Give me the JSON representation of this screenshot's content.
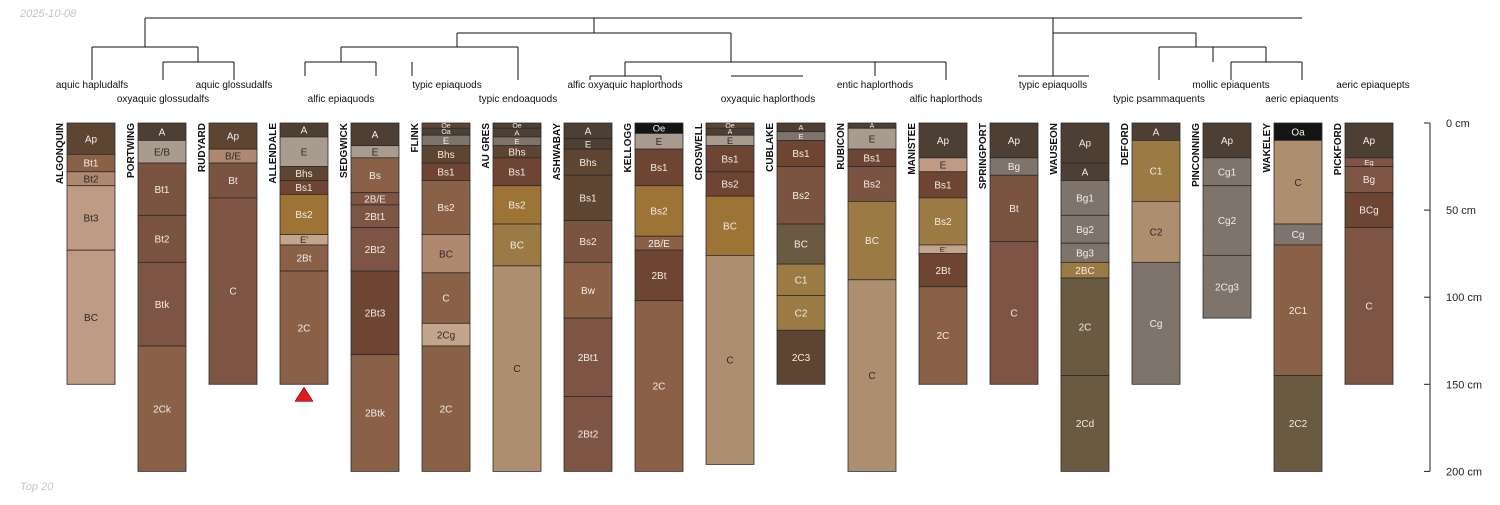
{
  "date": "2025-10-08",
  "footer": "Top 20",
  "depth_axis": {
    "unit": "cm",
    "ticks": [
      {
        "depth": 0,
        "label": "0 cm"
      },
      {
        "depth": 50,
        "label": "50 cm"
      },
      {
        "depth": 100,
        "label": "100 cm"
      },
      {
        "depth": 150,
        "label": "150 cm"
      },
      {
        "depth": 200,
        "label": "200 cm"
      }
    ]
  },
  "taxa": [
    "aquic hapludalfs",
    "oxyaquic glossudalfs",
    "aquic glossudalfs",
    "alfic epiaquods",
    "typic epiaquods",
    "typic endoaquods",
    "alfic oxyaquic haplorthods",
    "oxyaquic haplorthods",
    "entic haplorthods",
    "alfic haplorthods",
    "typic epiaquolls",
    "typic psammaquents",
    "mollic epiaquents",
    "aeric epiaquents",
    "aeric epiaquepts"
  ],
  "colors": {
    "black": "#141414",
    "dark": "#4d3f33",
    "darkbrown": "#5e4532",
    "reddark": "#6e4533",
    "brown": "#7a5440",
    "redbrown": "#7e5545",
    "medbrown": "#8a6147",
    "lightbrown": "#b08870",
    "pinkish": "#bf9a84",
    "olivebrown": "#9b7a44",
    "orange": "#9e7436",
    "tan": "#ad8e6e",
    "lighttan": "#c4a58b",
    "grey": "#a99b8d",
    "greybrown": "#7e746b",
    "olivedk": "#6b5a42",
    "pink": "#d8b3a0"
  },
  "profiles": [
    {
      "name": "ALGONQUIN",
      "horizons": [
        {
          "top": 0,
          "bottom": 18,
          "name": "Ap",
          "color": "darkbrown"
        },
        {
          "top": 18,
          "bottom": 28,
          "name": "Bt1",
          "color": "medbrown"
        },
        {
          "top": 28,
          "bottom": 36,
          "name": "Bt2",
          "color": "lightbrown"
        },
        {
          "top": 36,
          "bottom": 73,
          "name": "Bt3",
          "color": "pinkish"
        },
        {
          "top": 73,
          "bottom": 150,
          "name": "BC",
          "color": "pinkish"
        }
      ]
    },
    {
      "name": "PORTWING",
      "horizons": [
        {
          "top": 0,
          "bottom": 10,
          "name": "A",
          "color": "dark"
        },
        {
          "top": 10,
          "bottom": 23,
          "name": "E/B",
          "color": "grey"
        },
        {
          "top": 23,
          "bottom": 53,
          "name": "Bt1",
          "color": "brown"
        },
        {
          "top": 53,
          "bottom": 80,
          "name": "Bt2",
          "color": "brown"
        },
        {
          "top": 80,
          "bottom": 128,
          "name": "Btk",
          "color": "redbrown"
        },
        {
          "top": 128,
          "bottom": 200,
          "name": "2Ck",
          "color": "medbrown"
        }
      ]
    },
    {
      "name": "RUDYARD",
      "horizons": [
        {
          "top": 0,
          "bottom": 15,
          "name": "Ap",
          "color": "darkbrown"
        },
        {
          "top": 15,
          "bottom": 23,
          "name": "B/E",
          "color": "lightbrown"
        },
        {
          "top": 23,
          "bottom": 43,
          "name": "Bt",
          "color": "brown"
        },
        {
          "top": 43,
          "bottom": 150,
          "name": "C",
          "color": "redbrown"
        }
      ]
    },
    {
      "name": "ALLENDALE",
      "horizons": [
        {
          "top": 0,
          "bottom": 8,
          "name": "A",
          "color": "dark"
        },
        {
          "top": 8,
          "bottom": 25,
          "name": "E",
          "color": "grey"
        },
        {
          "top": 25,
          "bottom": 33,
          "name": "Bhs",
          "color": "darkbrown"
        },
        {
          "top": 33,
          "bottom": 41,
          "name": "Bs1",
          "color": "reddark"
        },
        {
          "top": 41,
          "bottom": 64,
          "name": "Bs2",
          "color": "orange"
        },
        {
          "top": 64,
          "bottom": 70,
          "name": "E'",
          "color": "lighttan"
        },
        {
          "top": 70,
          "bottom": 85,
          "name": "2Bt",
          "color": "medbrown"
        },
        {
          "top": 85,
          "bottom": 150,
          "name": "2C",
          "color": "medbrown"
        }
      ],
      "marker": true
    },
    {
      "name": "SEDGWICK",
      "horizons": [
        {
          "top": 0,
          "bottom": 13,
          "name": "A",
          "color": "dark"
        },
        {
          "top": 13,
          "bottom": 20,
          "name": "E",
          "color": "grey"
        },
        {
          "top": 20,
          "bottom": 40,
          "name": "Bs",
          "color": "medbrown"
        },
        {
          "top": 40,
          "bottom": 47,
          "name": "2B/E",
          "color": "redbrown"
        },
        {
          "top": 47,
          "bottom": 60,
          "name": "2Bt1",
          "color": "redbrown"
        },
        {
          "top": 60,
          "bottom": 85,
          "name": "2Bt2",
          "color": "redbrown"
        },
        {
          "top": 85,
          "bottom": 133,
          "name": "2Bt3",
          "color": "reddark"
        },
        {
          "top": 133,
          "bottom": 200,
          "name": "2Btk",
          "color": "medbrown"
        }
      ]
    },
    {
      "name": "FLINK",
      "horizons": [
        {
          "top": 0,
          "bottom": 3,
          "name": "Oe",
          "color": "darkbrown"
        },
        {
          "top": 3,
          "bottom": 7,
          "name": "Oa",
          "color": "dark"
        },
        {
          "top": 7,
          "bottom": 13,
          "name": "E",
          "color": "greybrown"
        },
        {
          "top": 13,
          "bottom": 23,
          "name": "Bhs",
          "color": "darkbrown"
        },
        {
          "top": 23,
          "bottom": 33,
          "name": "Bs1",
          "color": "reddark"
        },
        {
          "top": 33,
          "bottom": 64,
          "name": "Bs2",
          "color": "medbrown"
        },
        {
          "top": 64,
          "bottom": 86,
          "name": "BC",
          "color": "lightbrown"
        },
        {
          "top": 86,
          "bottom": 115,
          "name": "C",
          "color": "medbrown"
        },
        {
          "top": 115,
          "bottom": 128,
          "name": "2Cg",
          "color": "lighttan"
        },
        {
          "top": 128,
          "bottom": 200,
          "name": "2C",
          "color": "medbrown"
        }
      ]
    },
    {
      "name": "AU GRES",
      "horizons": [
        {
          "top": 0,
          "bottom": 3,
          "name": "Oe",
          "color": "dark"
        },
        {
          "top": 3,
          "bottom": 8,
          "name": "A",
          "color": "dark"
        },
        {
          "top": 8,
          "bottom": 13,
          "name": "E",
          "color": "greybrown"
        },
        {
          "top": 13,
          "bottom": 20,
          "name": "Bhs",
          "color": "darkbrown"
        },
        {
          "top": 20,
          "bottom": 36,
          "name": "Bs1",
          "color": "reddark"
        },
        {
          "top": 36,
          "bottom": 58,
          "name": "Bs2",
          "color": "orange"
        },
        {
          "top": 58,
          "bottom": 82,
          "name": "BC",
          "color": "olivebrown"
        },
        {
          "top": 82,
          "bottom": 200,
          "name": "C",
          "color": "tan"
        }
      ]
    },
    {
      "name": "ASHWABAY",
      "horizons": [
        {
          "top": 0,
          "bottom": 9,
          "name": "A",
          "color": "dark"
        },
        {
          "top": 9,
          "bottom": 15,
          "name": "E",
          "color": "dark"
        },
        {
          "top": 15,
          "bottom": 30,
          "name": "Bhs",
          "color": "darkbrown"
        },
        {
          "top": 30,
          "bottom": 56,
          "name": "Bs1",
          "color": "darkbrown"
        },
        {
          "top": 56,
          "bottom": 80,
          "name": "Bs2",
          "color": "brown"
        },
        {
          "top": 80,
          "bottom": 112,
          "name": "Bw",
          "color": "medbrown"
        },
        {
          "top": 112,
          "bottom": 157,
          "name": "2Bt1",
          "color": "redbrown"
        },
        {
          "top": 157,
          "bottom": 200,
          "name": "2Bt2",
          "color": "redbrown"
        }
      ]
    },
    {
      "name": "KELLOGG",
      "horizons": [
        {
          "top": 0,
          "bottom": 6,
          "name": "Oe",
          "color": "black"
        },
        {
          "top": 6,
          "bottom": 15,
          "name": "E",
          "color": "grey"
        },
        {
          "top": 15,
          "bottom": 36,
          "name": "Bs1",
          "color": "reddark"
        },
        {
          "top": 36,
          "bottom": 65,
          "name": "Bs2",
          "color": "orange"
        },
        {
          "top": 65,
          "bottom": 73,
          "name": "2B/E",
          "color": "medbrown"
        },
        {
          "top": 73,
          "bottom": 102,
          "name": "2Bt",
          "color": "reddark"
        },
        {
          "top": 102,
          "bottom": 200,
          "name": "2C",
          "color": "medbrown"
        }
      ]
    },
    {
      "name": "CROSWELL",
      "horizons": [
        {
          "top": 0,
          "bottom": 3,
          "name": "Oe",
          "color": "darkbrown"
        },
        {
          "top": 3,
          "bottom": 7,
          "name": "A",
          "color": "dark"
        },
        {
          "top": 7,
          "bottom": 13,
          "name": "E",
          "color": "grey"
        },
        {
          "top": 13,
          "bottom": 28,
          "name": "Bs1",
          "color": "reddark"
        },
        {
          "top": 28,
          "bottom": 42,
          "name": "Bs2",
          "color": "reddark"
        },
        {
          "top": 42,
          "bottom": 76,
          "name": "BC",
          "color": "orange"
        },
        {
          "top": 76,
          "bottom": 196,
          "name": "C",
          "color": "tan"
        }
      ]
    },
    {
      "name": "CUBLAKE",
      "horizons": [
        {
          "top": 0,
          "bottom": 5,
          "name": "A",
          "color": "dark"
        },
        {
          "top": 5,
          "bottom": 10,
          "name": "E",
          "color": "greybrown"
        },
        {
          "top": 10,
          "bottom": 25,
          "name": "Bs1",
          "color": "reddark"
        },
        {
          "top": 25,
          "bottom": 58,
          "name": "Bs2",
          "color": "brown"
        },
        {
          "top": 58,
          "bottom": 81,
          "name": "BC",
          "color": "olivedk"
        },
        {
          "top": 81,
          "bottom": 99,
          "name": "C1",
          "color": "olivebrown"
        },
        {
          "top": 99,
          "bottom": 119,
          "name": "C2",
          "color": "olivebrown"
        },
        {
          "top": 119,
          "bottom": 150,
          "name": "2C3",
          "color": "darkbrown"
        }
      ]
    },
    {
      "name": "RUBICON",
      "horizons": [
        {
          "top": 0,
          "bottom": 3,
          "name": "A",
          "color": "dark"
        },
        {
          "top": 3,
          "bottom": 15,
          "name": "E",
          "color": "grey"
        },
        {
          "top": 15,
          "bottom": 25,
          "name": "Bs1",
          "color": "reddark"
        },
        {
          "top": 25,
          "bottom": 45,
          "name": "Bs2",
          "color": "brown"
        },
        {
          "top": 45,
          "bottom": 90,
          "name": "BC",
          "color": "olivebrown"
        },
        {
          "top": 90,
          "bottom": 200,
          "name": "C",
          "color": "tan"
        }
      ]
    },
    {
      "name": "MANISTEE",
      "horizons": [
        {
          "top": 0,
          "bottom": 20,
          "name": "Ap",
          "color": "dark"
        },
        {
          "top": 20,
          "bottom": 28,
          "name": "E",
          "color": "pinkish"
        },
        {
          "top": 28,
          "bottom": 43,
          "name": "Bs1",
          "color": "reddark"
        },
        {
          "top": 43,
          "bottom": 70,
          "name": "Bs2",
          "color": "olivebrown"
        },
        {
          "top": 70,
          "bottom": 75,
          "name": "E'",
          "color": "lighttan"
        },
        {
          "top": 75,
          "bottom": 94,
          "name": "2Bt",
          "color": "reddark"
        },
        {
          "top": 94,
          "bottom": 150,
          "name": "2C",
          "color": "medbrown"
        }
      ]
    },
    {
      "name": "SPRINGPORT",
      "horizons": [
        {
          "top": 0,
          "bottom": 20,
          "name": "Ap",
          "color": "dark"
        },
        {
          "top": 20,
          "bottom": 30,
          "name": "Bg",
          "color": "greybrown"
        },
        {
          "top": 30,
          "bottom": 68,
          "name": "Bt",
          "color": "brown"
        },
        {
          "top": 68,
          "bottom": 150,
          "name": "C",
          "color": "redbrown"
        }
      ]
    },
    {
      "name": "WAUSEON",
      "horizons": [
        {
          "top": 0,
          "bottom": 23,
          "name": "Ap",
          "color": "dark"
        },
        {
          "top": 23,
          "bottom": 33,
          "name": "A",
          "color": "dark"
        },
        {
          "top": 33,
          "bottom": 53,
          "name": "Bg1",
          "color": "greybrown"
        },
        {
          "top": 53,
          "bottom": 69,
          "name": "Bg2",
          "color": "greybrown"
        },
        {
          "top": 69,
          "bottom": 80,
          "name": "Bg3",
          "color": "greybrown"
        },
        {
          "top": 80,
          "bottom": 89,
          "name": "2BC",
          "color": "olivebrown"
        },
        {
          "top": 89,
          "bottom": 145,
          "name": "2C",
          "color": "olivedk"
        },
        {
          "top": 145,
          "bottom": 200,
          "name": "2Cd",
          "color": "olivedk"
        }
      ]
    },
    {
      "name": "DEFORD",
      "horizons": [
        {
          "top": 0,
          "bottom": 10,
          "name": "A",
          "color": "dark"
        },
        {
          "top": 10,
          "bottom": 45,
          "name": "C1",
          "color": "olivebrown"
        },
        {
          "top": 45,
          "bottom": 80,
          "name": "C2",
          "color": "tan"
        },
        {
          "top": 80,
          "bottom": 150,
          "name": "Cg",
          "color": "greybrown"
        }
      ]
    },
    {
      "name": "PINCONNING",
      "horizons": [
        {
          "top": 0,
          "bottom": 20,
          "name": "Ap",
          "color": "dark"
        },
        {
          "top": 20,
          "bottom": 36,
          "name": "Cg1",
          "color": "greybrown"
        },
        {
          "top": 36,
          "bottom": 76,
          "name": "Cg2",
          "color": "greybrown"
        },
        {
          "top": 76,
          "bottom": 112,
          "name": "2Cg3",
          "color": "greybrown"
        }
      ]
    },
    {
      "name": "WAKELEY",
      "horizons": [
        {
          "top": 0,
          "bottom": 10,
          "name": "Oa",
          "color": "black"
        },
        {
          "top": 10,
          "bottom": 58,
          "name": "C",
          "color": "tan"
        },
        {
          "top": 58,
          "bottom": 70,
          "name": "Cg",
          "color": "greybrown"
        },
        {
          "top": 70,
          "bottom": 145,
          "name": "2C1",
          "color": "medbrown"
        },
        {
          "top": 145,
          "bottom": 200,
          "name": "2C2",
          "color": "olivedk"
        }
      ]
    },
    {
      "name": "PICKFORD",
      "horizons": [
        {
          "top": 0,
          "bottom": 20,
          "name": "Ap",
          "color": "dark"
        },
        {
          "top": 20,
          "bottom": 25,
          "name": "Eg",
          "color": "redbrown"
        },
        {
          "top": 25,
          "bottom": 40,
          "name": "Bg",
          "color": "redbrown"
        },
        {
          "top": 40,
          "bottom": 60,
          "name": "BCg",
          "color": "reddark"
        },
        {
          "top": 60,
          "bottom": 150,
          "name": "C",
          "color": "redbrown"
        }
      ]
    }
  ]
}
